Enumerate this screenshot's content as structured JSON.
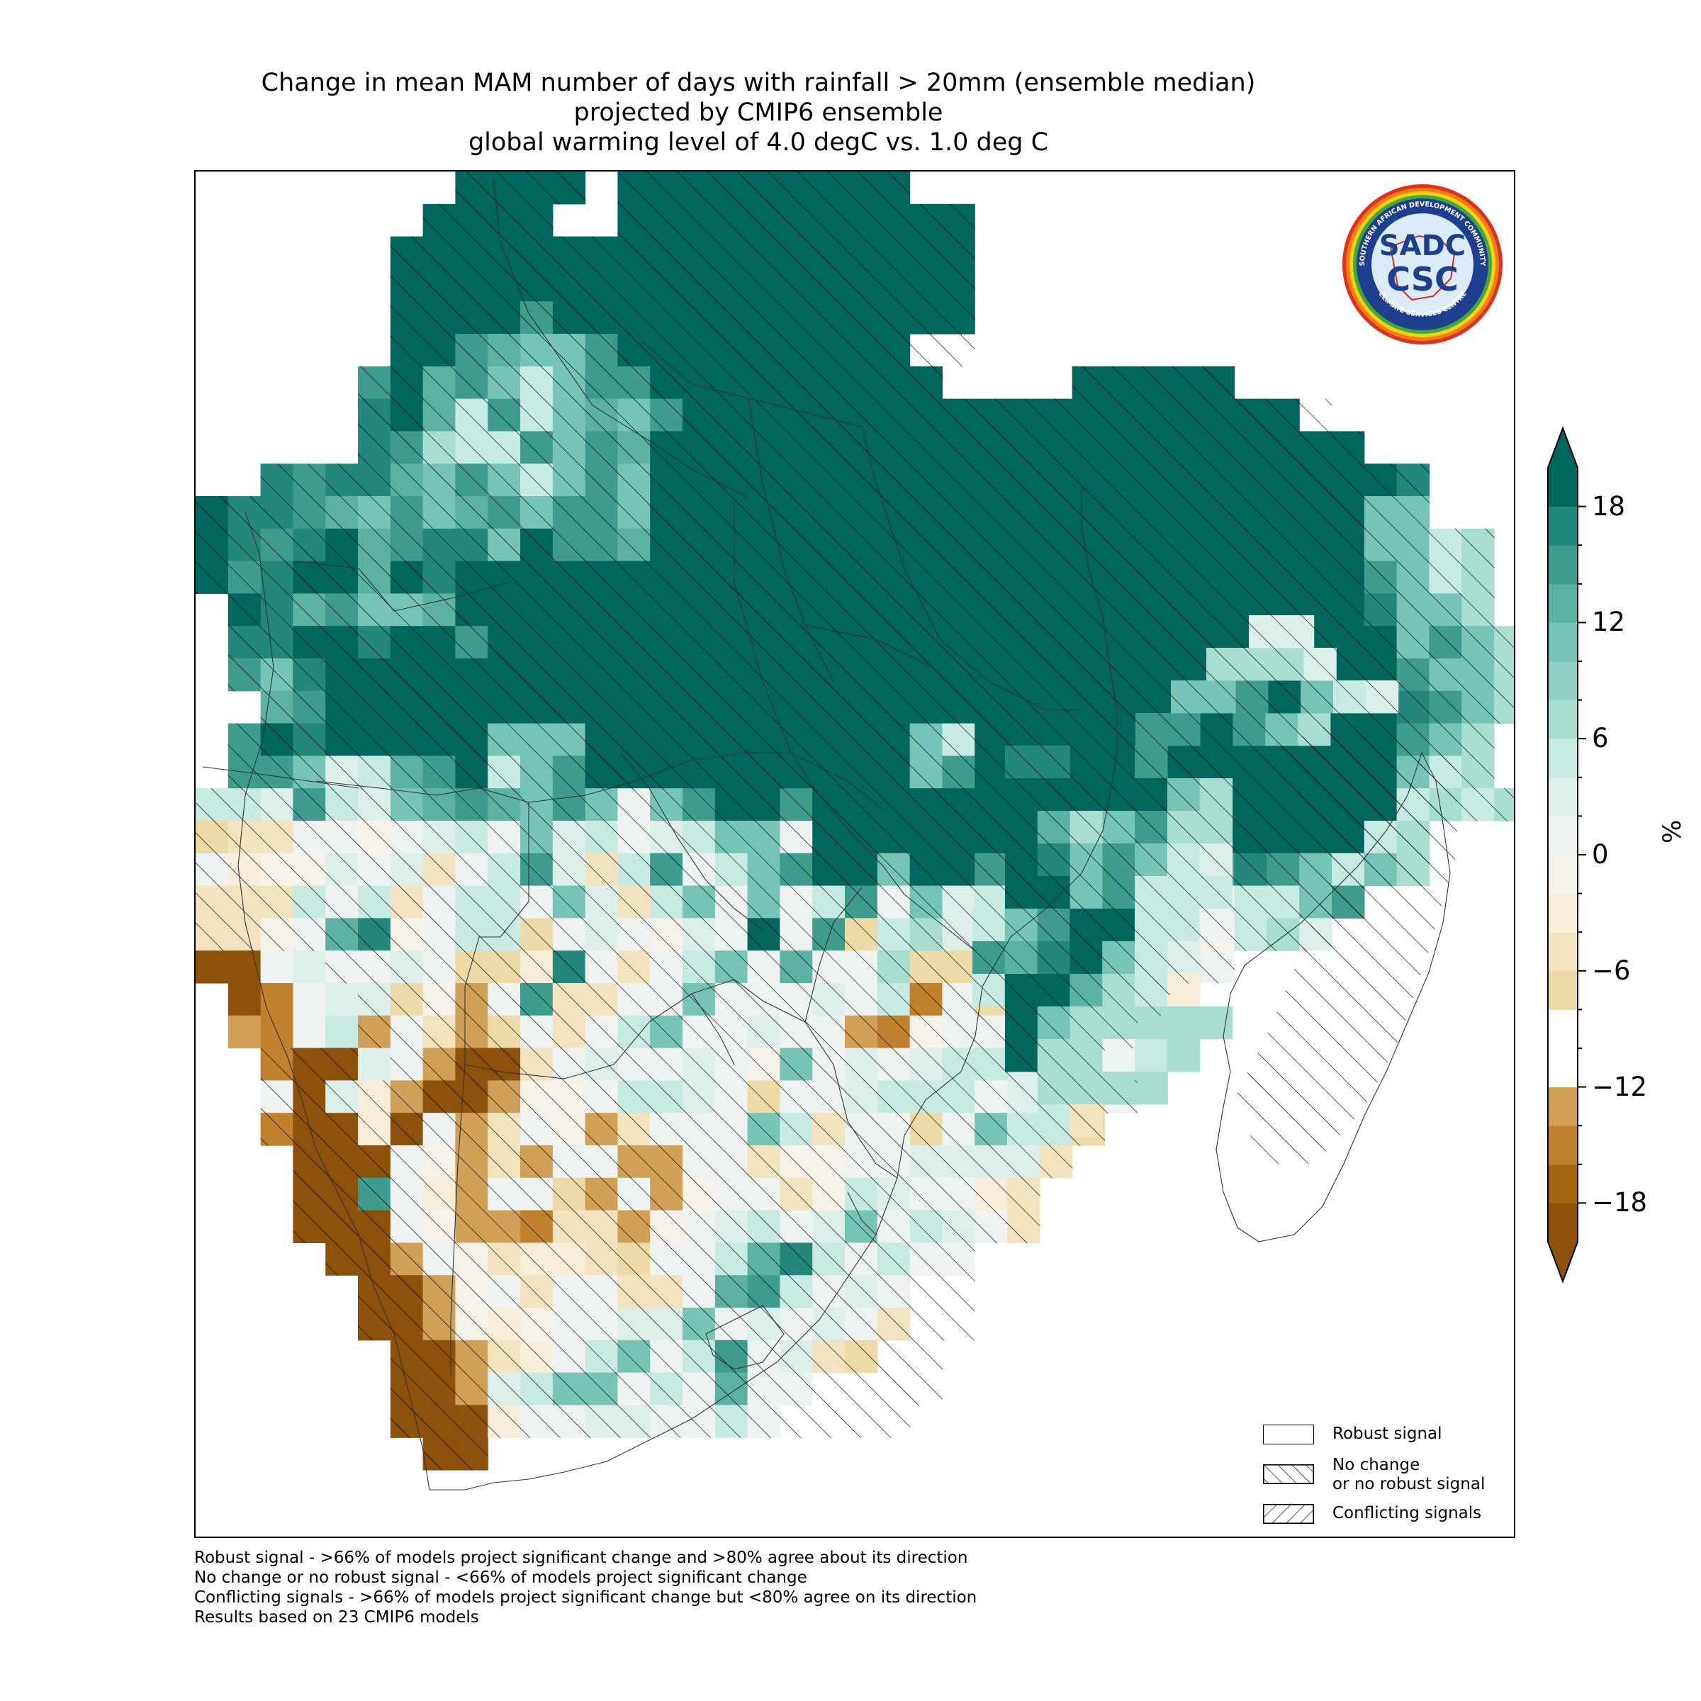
{
  "title": {
    "line1": "Change in mean MAM number of days with rainfall > 20mm (ensemble median)",
    "line2": "projected by CMIP6 ensemble",
    "line3": "global warming level of 4.0 degC vs. 1.0 deg C"
  },
  "logo": {
    "ring_text_top": "SOUTHERN AFRICAN DEVELOPMENT COMMUNITY",
    "ring_text_bottom": "CLIMATE SERVICES CENTRE",
    "mark_top": "SADC",
    "mark_bottom": "CSC"
  },
  "legend": {
    "robust_label": "Robust signal",
    "nochange_label_line1": "No change",
    "nochange_label_line2": "or no robust signal",
    "conflicting_label": "Conflicting signals"
  },
  "colorbar": {
    "unit": "%",
    "ticks": [
      "18",
      "12",
      "6",
      "0",
      "−6",
      "−12",
      "−18"
    ],
    "tick_values": [
      18,
      12,
      6,
      0,
      -6,
      -12,
      -18
    ],
    "range": [
      -20,
      20
    ],
    "bins": [
      {
        "from": -20,
        "to": -18,
        "color": "#8c510a"
      },
      {
        "from": -18,
        "to": -16,
        "color": "#a6660f"
      },
      {
        "from": -16,
        "to": -14,
        "color": "#bf812d"
      },
      {
        "from": -14,
        "to": -12,
        "color": "#cfa055"
      },
      {
        "from": -12,
        "to": -8,
        "color": "#ffffff"
      },
      {
        "from": -8,
        "to": -6,
        "color": "#eedaa7"
      },
      {
        "from": -6,
        "to": -4,
        "color": "#f3e3bf"
      },
      {
        "from": -4,
        "to": -2,
        "color": "#f7edd8"
      },
      {
        "from": -2,
        "to": 0,
        "color": "#f6f2ea"
      },
      {
        "from": 0,
        "to": 2,
        "color": "#eef3f1"
      },
      {
        "from": 2,
        "to": 4,
        "color": "#dcefeb"
      },
      {
        "from": 4,
        "to": 6,
        "color": "#c7eae3"
      },
      {
        "from": 6,
        "to": 8,
        "color": "#a8ddd2"
      },
      {
        "from": 8,
        "to": 10,
        "color": "#8fd0c3"
      },
      {
        "from": 10,
        "to": 12,
        "color": "#75c4b5"
      },
      {
        "from": 12,
        "to": 14,
        "color": "#5bb1a2"
      },
      {
        "from": 14,
        "to": 16,
        "color": "#3e9c8e"
      },
      {
        "from": 16,
        "to": 18,
        "color": "#23877b"
      },
      {
        "from": 18,
        "to": 20,
        "color": "#01665e"
      }
    ]
  },
  "footnotes": {
    "line1": "Robust signal - >66% of models project significant change and >80% agree about its direction",
    "line2": "No change or no robust signal - <66% of models project significant change",
    "line3": "Conflicting signals - >66% of models project significant change but <80% agree on its direction",
    "line4": "Results based on 23 CMIP6 models"
  },
  "colors": {
    "hatch": "#000000",
    "logo_blue": "#1e3f8f",
    "logo_red": "#d62b2b"
  }
}
